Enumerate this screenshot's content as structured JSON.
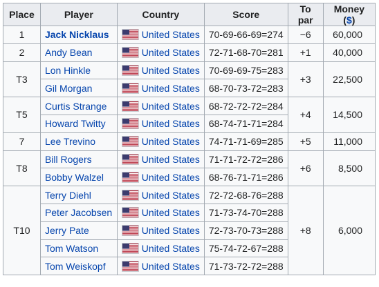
{
  "headers": {
    "place": "Place",
    "player": "Player",
    "country": "Country",
    "score": "Score",
    "to_par": "To par",
    "money_prefix": "Money (",
    "money_currency": "$",
    "money_suffix": ")"
  },
  "rows": [
    {
      "place": "1",
      "player": "Jack Nicklaus",
      "country": "United States",
      "score": "70-69-66-69=274",
      "to_par": "−6",
      "money": "60,000"
    },
    {
      "place": "2",
      "player": "Andy Bean",
      "country": "United States",
      "score": "72-71-68-70=281",
      "to_par": "+1",
      "money": "40,000"
    },
    {
      "place": "T3",
      "player": "Lon Hinkle",
      "country": "United States",
      "score": "70-69-69-75=283",
      "to_par": "+3",
      "money": "22,500"
    },
    {
      "player": "Gil Morgan",
      "country": "United States",
      "score": "68-70-73-72=283"
    },
    {
      "place": "T5",
      "player": "Curtis Strange",
      "country": "United States",
      "score": "68-72-72-72=284",
      "to_par": "+4",
      "money": "14,500"
    },
    {
      "player": "Howard Twitty",
      "country": "United States",
      "score": "68-74-71-71=284"
    },
    {
      "place": "7",
      "player": "Lee Trevino",
      "country": "United States",
      "score": "74-71-71-69=285",
      "to_par": "+5",
      "money": "11,000"
    },
    {
      "place": "T8",
      "player": "Bill Rogers",
      "country": "United States",
      "score": "71-71-72-72=286",
      "to_par": "+6",
      "money": "8,500"
    },
    {
      "player": "Bobby Walzel",
      "country": "United States",
      "score": "68-76-71-71=286"
    },
    {
      "place": "T10",
      "player": "Terry Diehl",
      "country": "United States",
      "score": "72-72-68-76=288",
      "to_par": "+8",
      "money": "6,000"
    },
    {
      "player": "Peter Jacobsen",
      "country": "United States",
      "score": "71-73-74-70=288"
    },
    {
      "player": "Jerry Pate",
      "country": "United States",
      "score": "72-73-70-73=288"
    },
    {
      "player": "Tom Watson",
      "country": "United States",
      "score": "75-74-72-67=288"
    },
    {
      "player": "Tom Weiskopf",
      "country": "United States",
      "score": "71-73-72-72=288"
    }
  ],
  "flag_icon": "us-flag-icon"
}
